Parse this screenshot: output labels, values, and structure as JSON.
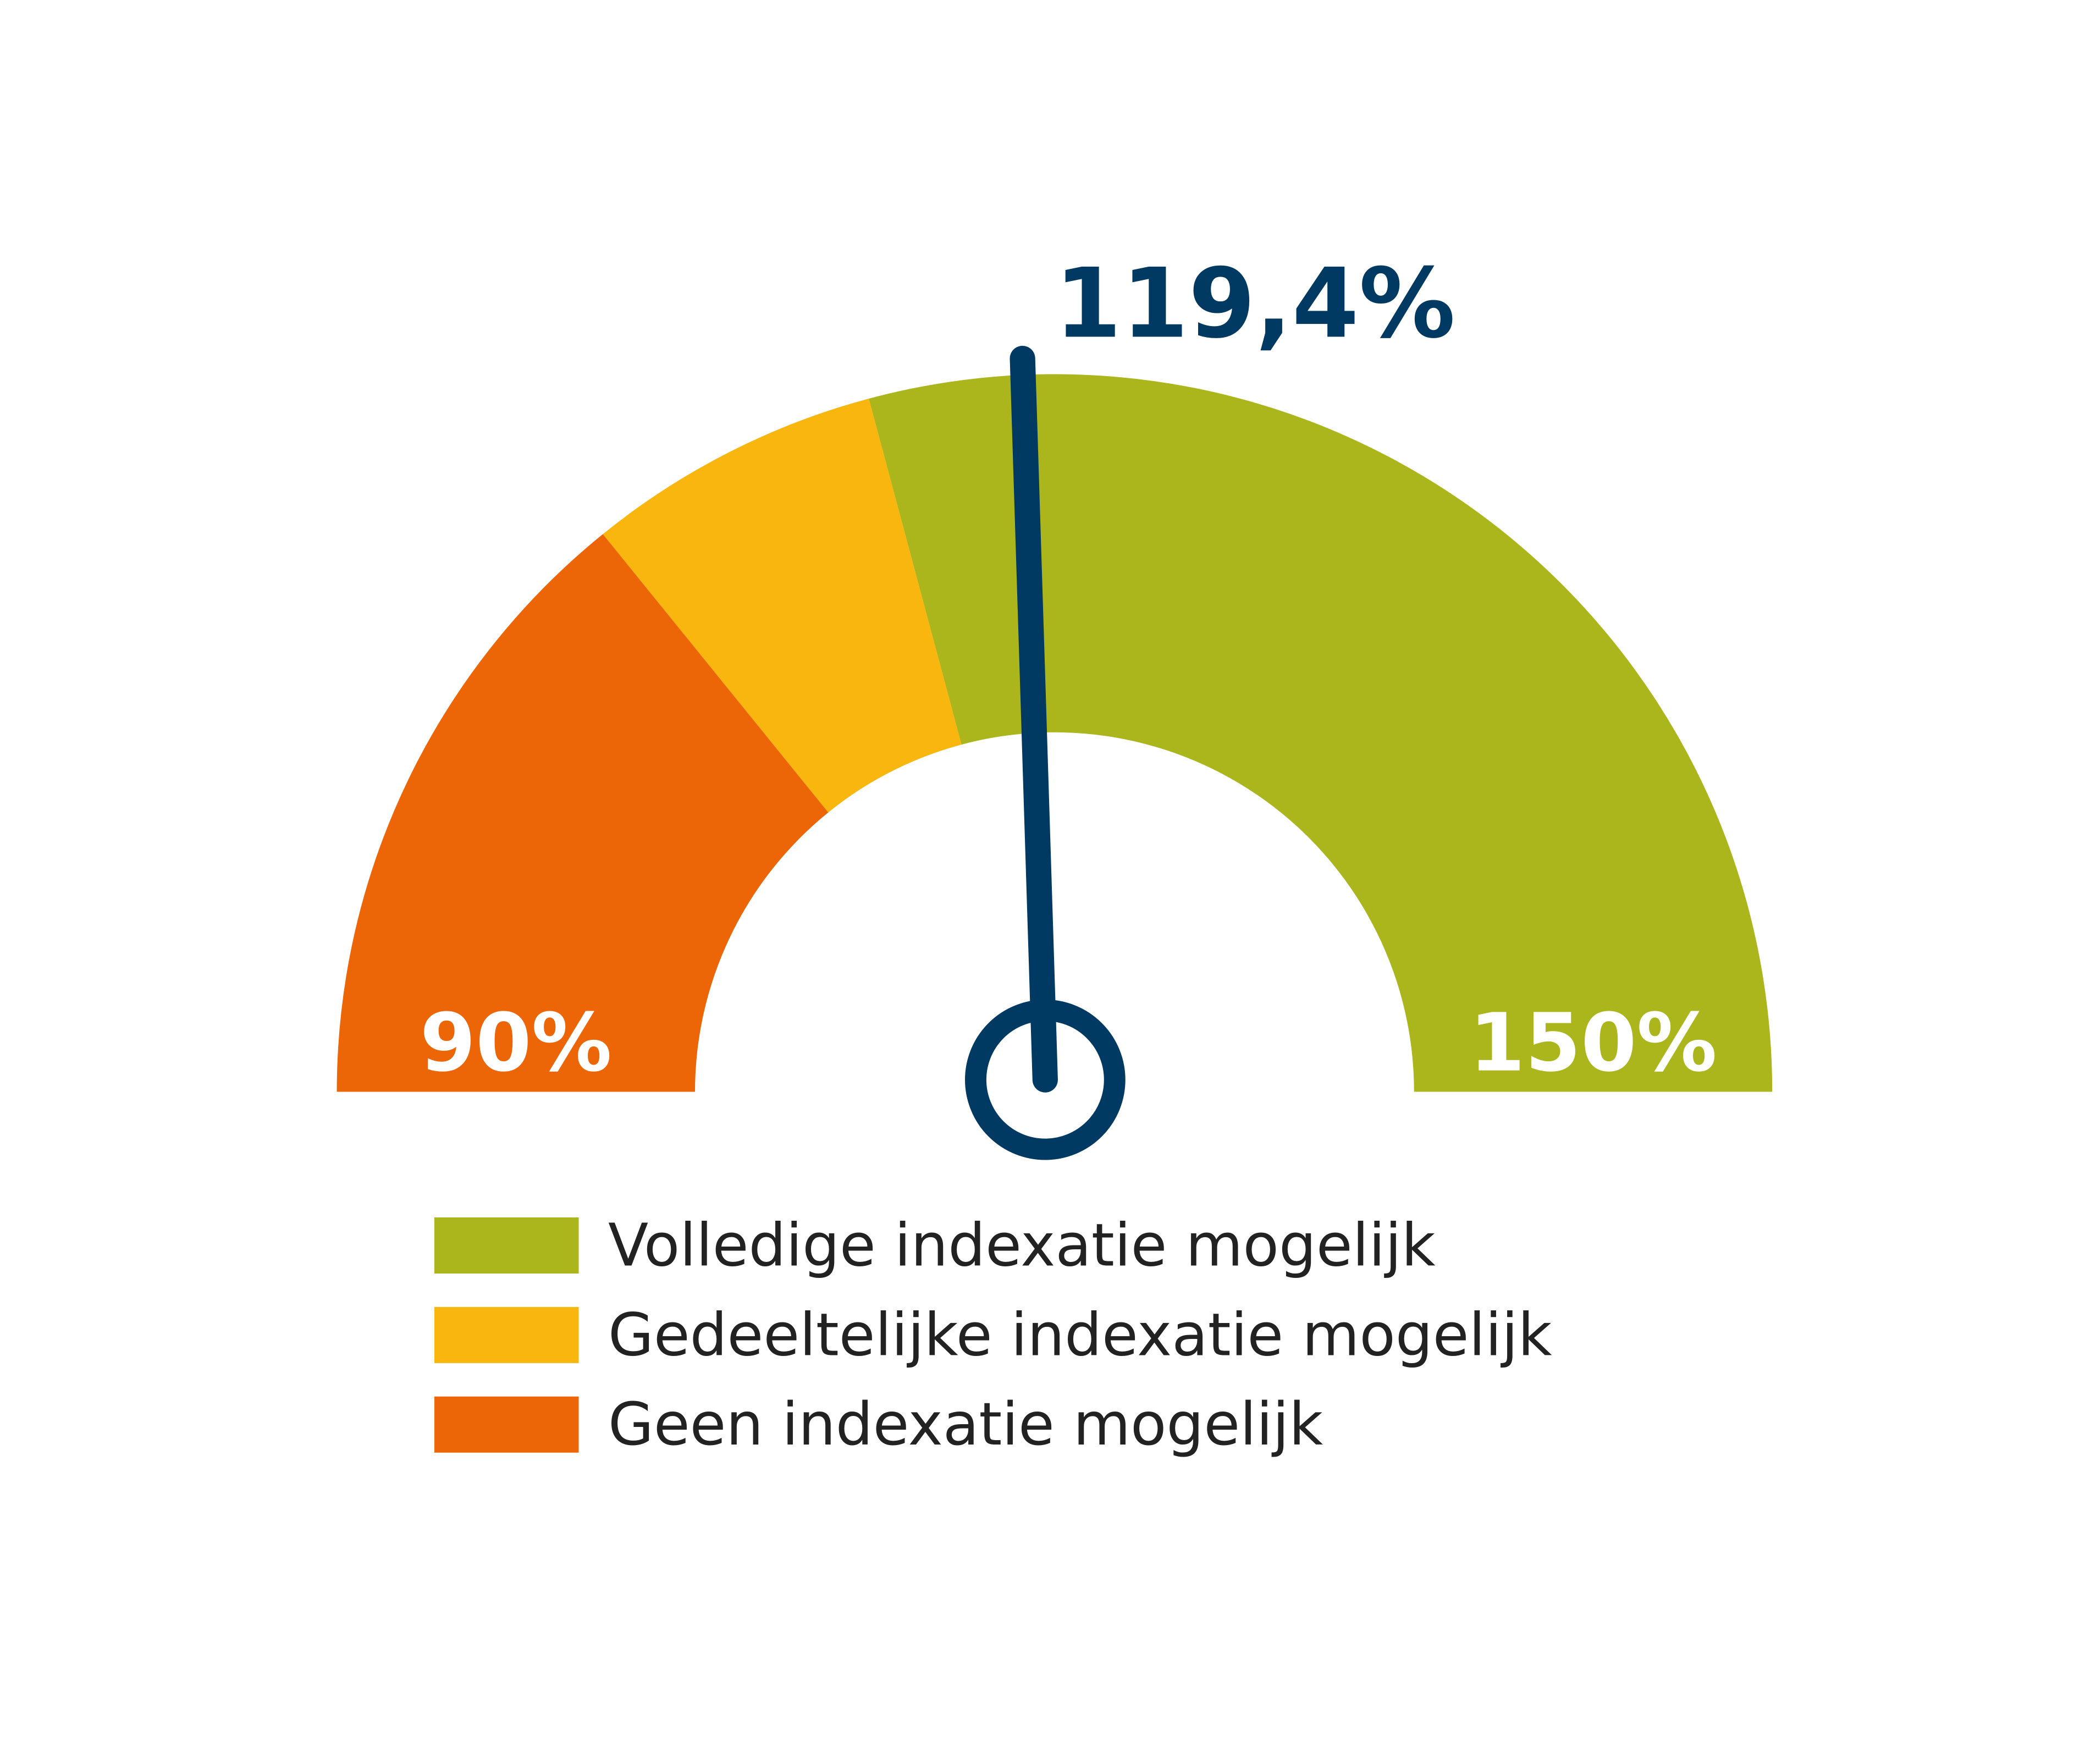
{
  "chart_data": {
    "type": "gauge",
    "xlim": [
      90,
      150
    ],
    "xticks": [
      {
        "value": 90,
        "label": "90%"
      },
      {
        "value": 150,
        "label": "150%"
      }
    ],
    "value": 119.4,
    "value_label": "119,4%",
    "needle_color": "#003a63",
    "bands": [
      {
        "name": "Volledige indexatie mogelijk",
        "color": "#abb61c",
        "from": 115,
        "to": 150
      },
      {
        "name": "Gedeeltelijke indexatie mogelijk",
        "color": "#f9b60f",
        "from": 107,
        "to": 115
      },
      {
        "name": "Geen indexatie mogelijk",
        "color": "#ec6608",
        "from": 90,
        "to": 107
      }
    ]
  }
}
